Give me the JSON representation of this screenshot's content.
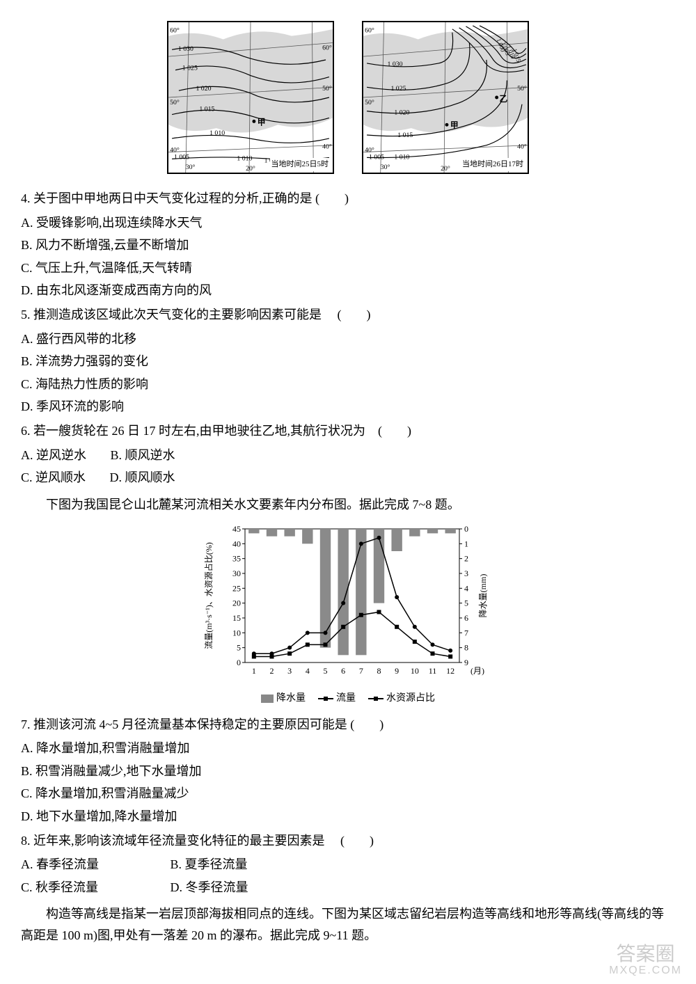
{
  "maps": {
    "left": {
      "caption": "当地时间25日5时",
      "grid_labels": {
        "lat_top": "60°",
        "lat_mid": "50°",
        "lat_bot": "40°",
        "lon_left": "20°",
        "lon_right": "60°"
      },
      "isobars": [
        "1 005",
        "1 010",
        "1 015",
        "1 020",
        "1 025",
        "1 030"
      ],
      "marker": "甲"
    },
    "right": {
      "caption": "当地时间26日17时",
      "grid_labels": {
        "lat_top": "60°",
        "lat_mid": "50°",
        "lat_bot": "40°",
        "lon_left": "20°",
        "lon_right": "60°"
      },
      "isobars": [
        "1 000",
        "1 005",
        "1 010",
        "1 015",
        "1 020",
        "1 025",
        "1 030"
      ],
      "marker_a": "甲",
      "marker_b": "乙"
    }
  },
  "q4": {
    "stem": "4. 关于图中甲地两日中天气变化过程的分析,正确的是",
    "optA": "A. 受暖锋影响,出现连续降水天气",
    "optB": "B. 风力不断增强,云量不断增加",
    "optC": "C. 气压上升,气温降低,天气转晴",
    "optD": "D. 由东北风逐渐变成西南方向的风"
  },
  "q5": {
    "stem": "5. 推测造成该区域此次天气变化的主要影响因素可能是",
    "optA": "A. 盛行西风带的北移",
    "optB": "B. 洋流势力强弱的变化",
    "optC": "C. 海陆热力性质的影响",
    "optD": "D. 季风环流的影响"
  },
  "q6": {
    "stem": "6. 若一艘货轮在 26 日 17 时左右,由甲地驶往乙地,其航行状况为",
    "optA": "A. 逆风逆水",
    "optB": "B. 顺风逆水",
    "optC": "C. 逆风顺水",
    "optD": "D. 顺风顺水"
  },
  "intro78": "下图为我国昆仑山北麓某河流相关水文要素年内分布图。据此完成 7~8 题。",
  "chart": {
    "type": "combo-bar-line",
    "months": [
      1,
      2,
      3,
      4,
      5,
      6,
      7,
      8,
      9,
      10,
      11,
      12
    ],
    "month_label": "(月)",
    "left_axis": {
      "label": "流量(m³·s⁻¹)、水资源占比(%)",
      "ticks": [
        0,
        5,
        10,
        15,
        20,
        25,
        30,
        35,
        40,
        45
      ],
      "ylim": [
        0,
        45
      ]
    },
    "right_axis": {
      "label": "降水量(mm)",
      "ticks": [
        0,
        1,
        2,
        3,
        4,
        5,
        6,
        7,
        8,
        9
      ],
      "ylim": [
        0,
        9
      ],
      "inverted": true
    },
    "bars_precip_mm": [
      0.3,
      0.5,
      0.5,
      1.0,
      8.0,
      8.5,
      8.5,
      5.0,
      1.5,
      0.5,
      0.3,
      0.3
    ],
    "bar_color": "#8a8a8a",
    "line_flow": [
      3,
      3,
      5,
      10,
      10,
      20,
      40,
      42,
      22,
      12,
      6,
      4
    ],
    "line_flow_marker": "circle",
    "line_share": [
      2,
      2,
      3,
      6,
      6,
      12,
      16,
      17,
      12,
      7,
      3,
      2
    ],
    "line_share_marker": "square",
    "line_color": "#000000",
    "legend": {
      "bar": "降水量",
      "flow": "流量",
      "share": "水资源占比"
    },
    "background_color": "#ffffff",
    "axis_color": "#000000",
    "bar_width": 0.6
  },
  "q7": {
    "stem": "7. 推测该河流 4~5 月径流量基本保持稳定的主要原因可能是",
    "optA": "A. 降水量增加,积雪消融量增加",
    "optB": "B. 积雪消融量减少,地下水量增加",
    "optC": "C. 降水量增加,积雪消融量减少",
    "optD": "D. 地下水量增加,降水量增加"
  },
  "q8": {
    "stem": "8. 近年来,影响该流域年径流量变化特征的最主要因素是",
    "optA": "A. 春季径流量",
    "optB": "B. 夏季径流量",
    "optC": "C. 秋季径流量",
    "optD": "D. 冬季径流量"
  },
  "intro911": "构造等高线是指某一岩层顶部海拔相同点的连线。下图为某区域志留纪岩层构造等高线和地形等高线(等高线的等高距是 100 m)图,甲处有一落差 20 m 的瀑布。据此完成 9~11 题。",
  "blank": "(　　)",
  "watermark": {
    "main": "答案圈",
    "sub": "MXQE.COM"
  }
}
